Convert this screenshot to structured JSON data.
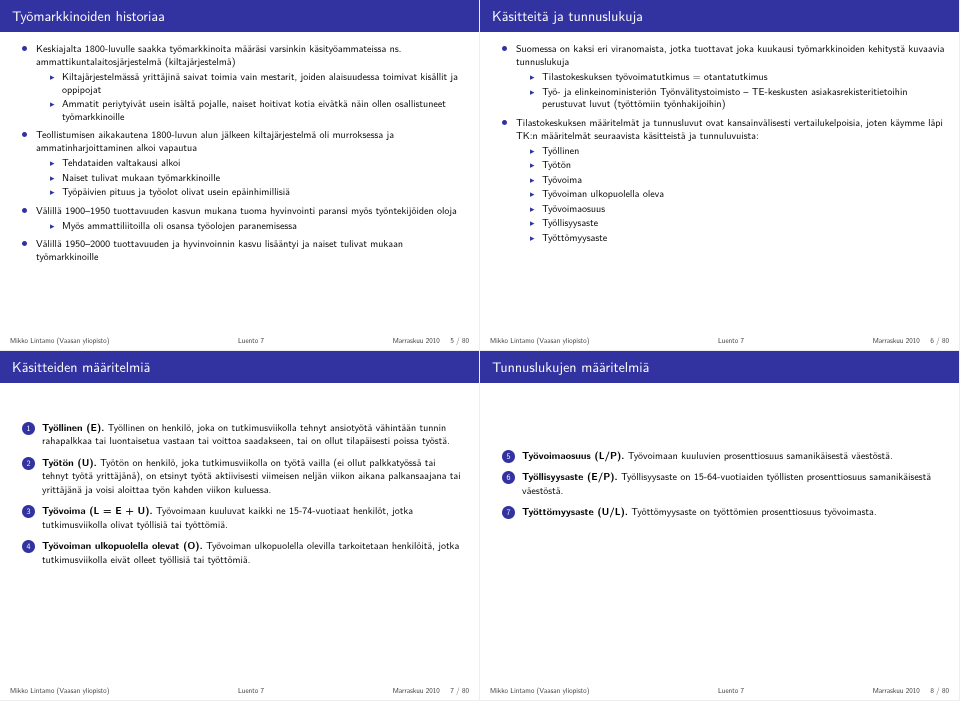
{
  "colors": {
    "brand": "#3232a0",
    "text": "#000000",
    "bg": "#ffffff"
  },
  "footer": {
    "author": "Mikko Lintamo (Vaasan yliopisto)",
    "lecture": "Luento 7",
    "date": "Marraskuu 2010"
  },
  "slides": [
    {
      "page": "5 / 80",
      "title": "Työmarkkinoiden historiaa",
      "bullets1": [
        {
          "text": "Keskiajalta 1800-luvulle saakka työmarkkinoita määräsi varsinkin käsityöammateissa ns. ammattikuntalaitosjärjestelmä (kiltajärjestelmä)",
          "sub": [
            "Kiltajärjestelmässä yrittäjinä saivat toimia vain mestarit, joiden alaisuudessa toimivat kisällit ja oppipojat",
            "Ammatit periytyivät usein isältä pojalle, naiset hoitivat kotia eivätkä näin ollen osallistuneet työmarkkinoille"
          ]
        },
        {
          "text": "Teollistumisen aikakautena 1800-luvun alun jälkeen kiltajärjestelmä oli murroksessa ja ammatinharjoittaminen alkoi vapautua",
          "sub": [
            "Tehdataiden valtakausi alkoi",
            "Naiset tulivat mukaan työmarkkinoille",
            "Työpäivien pituus ja työolot olivat usein epäinhimillisiä"
          ]
        },
        {
          "text": "Välillä 1900–1950 tuottavuuden kasvun mukana tuoma hyvinvointi paransi myös työntekijöiden oloja",
          "sub": [
            "Myös ammattiliitoilla oli osansa työolojen paranemisessa"
          ]
        },
        {
          "text": "Välillä 1950–2000 tuottavuuden ja hyvinvoinnin kasvu lisääntyi ja naiset tulivat mukaan työmarkkinoille",
          "sub": []
        }
      ]
    },
    {
      "page": "6 / 80",
      "title": "Käsitteitä ja tunnuslukuja",
      "bullets1": [
        {
          "text": "Suomessa on kaksi eri viranomaista, jotka tuottavat joka kuukausi työmarkkinoiden kehitystä kuvaavia tunnuslukuja",
          "sub": [
            "Tilastokeskuksen työvoimatutkimus = otantatutkimus",
            "Työ- ja elinkeinoministeriön Työnvälitystoimisto – TE-keskusten asiakasrekisteritietoihin perustuvat luvut (työttömiin työnhakijoihin)"
          ]
        },
        {
          "text": "Tilastokeskuksen määritelmät ja tunnusluvut ovat kansainvälisesti vertailukelpoisia, joten käymme läpi TK:n määritelmät seuraavista käsitteistä ja tunnuluvuista:",
          "sub": [
            "Työllinen",
            "Työtön",
            "Työvoima",
            "Työvoiman ulkopuolella oleva",
            "Työvoimaosuus",
            "Työllisyysaste",
            "Työttömyysaste"
          ]
        }
      ]
    },
    {
      "page": "7 / 80",
      "title": "Käsitteiden määritelmiä",
      "numbered": [
        {
          "n": "1",
          "term": "Työllinen (E).",
          "body": "Työllinen on henkilö, joka on tutkimusviikolla tehnyt ansiotyötä vähintään tunnin rahapalkkaa tai luontaisetua vastaan tai voittoa saadakseen, tai on ollut tilapäisesti poissa työstä."
        },
        {
          "n": "2",
          "term": "Työtön (U).",
          "body": "Työtön on henkilö, joka tutkimusviikolla on työtä vailla (ei ollut palkkatyössä tai tehnyt työtä yrittäjänä), on etsinyt työtä aktiivisesti viimeisen neljän viikon aikana palkansaajana tai yrittäjänä ja voisi aloittaa työn kahden viikon kuluessa."
        },
        {
          "n": "3",
          "term": "Työvoima (L = E + U).",
          "body": "Työvoimaan kuuluvat kaikki ne 15-74-vuotiaat henkilöt, jotka tutkimusviikolla olivat työllisiä tai työttömiä."
        },
        {
          "n": "4",
          "term": "Työvoiman ulkopuolella olevat (O).",
          "body": "Työvoiman ulkopuolella olevilla tarkoitetaan henkilöitä, jotka tutkimusviikolla eivät olleet työllisiä tai työttömiä."
        }
      ]
    },
    {
      "page": "8 / 80",
      "title": "Tunnuslukujen määritelmiä",
      "numbered": [
        {
          "n": "5",
          "term": "Työvoimaosuus (L/P).",
          "body": "Työvoimaan kuuluvien prosenttiosuus samanikäisestä väestöstä."
        },
        {
          "n": "6",
          "term": "Työllisyysaste (E/P).",
          "body": "Työllisyysaste on 15-64-vuotiaiden työllisten prosenttiosuus samanikäisestä väestöstä."
        },
        {
          "n": "7",
          "term": "Työttömyysaste (U/L).",
          "body": "Työttömyysaste on työttömien prosenttiosuus työvoimasta."
        }
      ]
    }
  ]
}
